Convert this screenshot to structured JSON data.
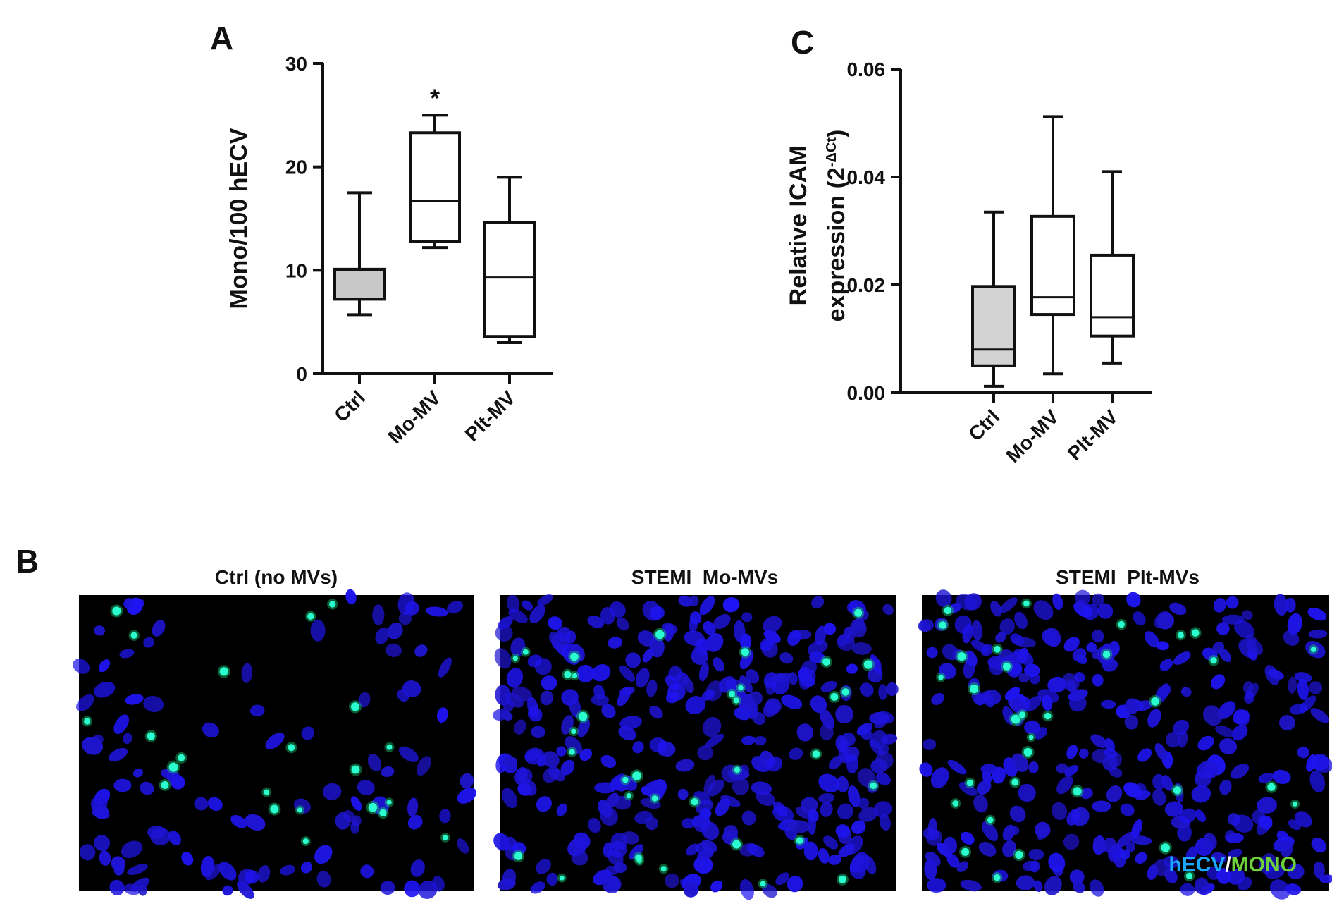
{
  "panels": {
    "A": "A",
    "B": "B",
    "C": "C"
  },
  "chart_data": [
    {
      "id": "A",
      "type": "box",
      "ylabel": "Mono/100 hECV",
      "ylim": [
        0,
        30
      ],
      "yticks": [
        "0",
        "10",
        "20",
        "30"
      ],
      "categories": [
        "Ctrl",
        "Mo-MV",
        "Plt-MV"
      ],
      "boxes": [
        {
          "min": 5.7,
          "q1": 7.2,
          "median": 10.0,
          "q3": 10.1,
          "max": 17.5,
          "fill": "#c8c8c8"
        },
        {
          "min": 12.2,
          "q1": 12.8,
          "median": 16.7,
          "q3": 23.3,
          "max": 25.0,
          "fill": "#ffffff"
        },
        {
          "min": 3.0,
          "q1": 3.6,
          "median": 9.3,
          "q3": 14.6,
          "max": 19.0,
          "fill": "#ffffff"
        }
      ],
      "annotations": [
        {
          "category": "Mo-MV",
          "text": "*"
        }
      ]
    },
    {
      "id": "C",
      "type": "box",
      "ylabel_line1": "Relative ICAM",
      "ylabel_line2": "expression (2",
      "ylabel_sup": "-ΔCt",
      "ylabel_close": ")",
      "ylim": [
        0,
        0.06
      ],
      "yticks": [
        "0.00",
        "0.02",
        "0.04",
        "0.06"
      ],
      "categories": [
        "Ctrl",
        "Mo-MV",
        "Plt-MV"
      ],
      "boxes": [
        {
          "min": 0.0012,
          "q1": 0.005,
          "median": 0.008,
          "q3": 0.0197,
          "max": 0.0335,
          "fill": "#d3d3d3"
        },
        {
          "min": 0.0035,
          "q1": 0.0145,
          "median": 0.0177,
          "q3": 0.0327,
          "max": 0.0512,
          "fill": "#ffffff"
        },
        {
          "min": 0.0055,
          "q1": 0.0105,
          "median": 0.014,
          "q3": 0.0255,
          "max": 0.041,
          "fill": "#ffffff"
        }
      ]
    }
  ],
  "micrographs": [
    {
      "title": "Ctrl (no MVs)",
      "nuclei": 150,
      "monocytes": 22
    },
    {
      "title": "STEMI  Mo-MVs",
      "nuclei": 320,
      "monocytes": 35
    },
    {
      "title": "STEMI  Plt-MVs",
      "nuclei": 290,
      "monocytes": 33
    }
  ],
  "legend": {
    "part1": "hECV",
    "separator": "/",
    "part2": "MONO"
  },
  "colors": {
    "axis": "#111111",
    "nucleus": "#1f12e8",
    "monocyte": "#2affd0",
    "legend_hecv": "#1aa8ff",
    "legend_sep": "#ffffff",
    "legend_mono": "#6fd13a"
  }
}
